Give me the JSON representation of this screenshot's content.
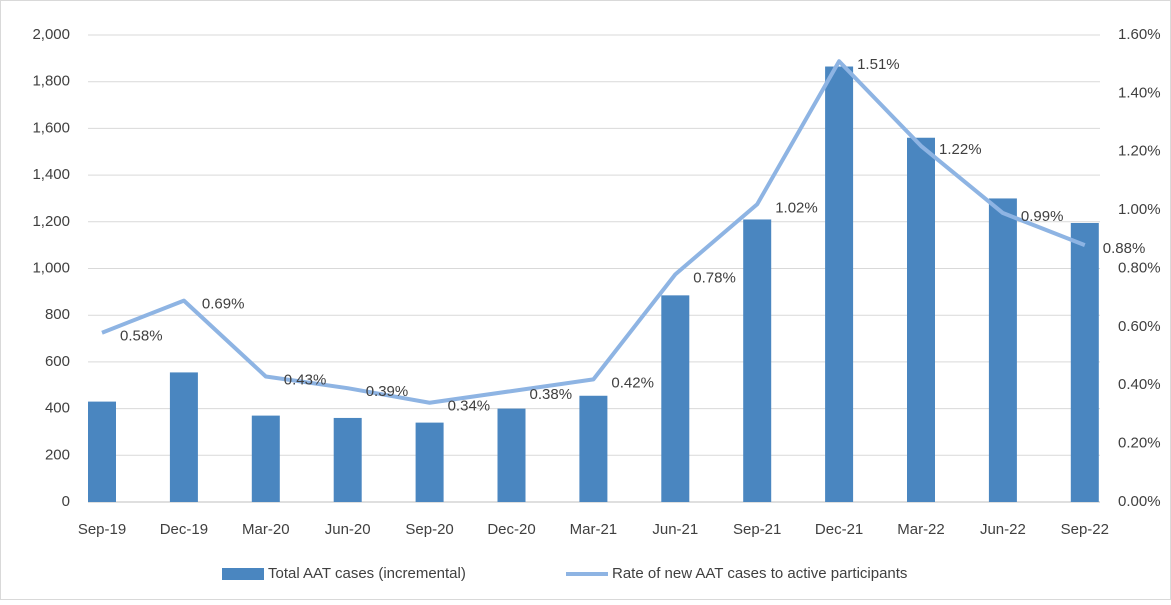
{
  "chart_data": {
    "type": "bar_line",
    "categories": [
      "Sep-19",
      "Dec-19",
      "Mar-20",
      "Jun-20",
      "Sep-20",
      "Dec-20",
      "Mar-21",
      "Jun-21",
      "Sep-21",
      "Dec-21",
      "Mar-22",
      "Jun-22",
      "Sep-22"
    ],
    "series": [
      {
        "name": "Total AAT cases (incremental)",
        "type": "bar",
        "color": "#4a86c0",
        "values": [
          430,
          555,
          370,
          360,
          340,
          400,
          455,
          885,
          1210,
          1865,
          1560,
          1300,
          1195
        ]
      },
      {
        "name": "Rate of new AAT cases to active participants",
        "type": "line",
        "axis": "y2",
        "color": "#8eb4e3",
        "values": [
          0.58,
          0.69,
          0.43,
          0.39,
          0.34,
          0.38,
          0.42,
          0.78,
          1.02,
          1.51,
          1.22,
          0.99,
          0.88
        ],
        "value_labels": [
          "0.58%",
          "0.69%",
          "0.43%",
          "0.39%",
          "0.34%",
          "0.38%",
          "0.42%",
          "0.78%",
          "1.02%",
          "1.51%",
          "1.22%",
          "0.99%",
          "0.88%"
        ]
      }
    ],
    "ylim": [
      0,
      2000
    ],
    "yticks": [
      0,
      200,
      400,
      600,
      800,
      {
        "value": 1000,
        "label": "1,000"
      },
      {
        "value": 1200,
        "label": "1,200"
      },
      {
        "value": 1400,
        "label": "1,400"
      },
      {
        "value": 1600,
        "label": "1,600"
      },
      {
        "value": 1800,
        "label": "1,800"
      },
      {
        "value": 2000,
        "label": "2,000"
      }
    ],
    "y2lim": [
      0,
      1.6
    ],
    "y2ticks": [
      {
        "value": 0,
        "label": "0.00%"
      },
      {
        "value": 0.2,
        "label": "0.20%"
      },
      {
        "value": 0.4,
        "label": "0.40%"
      },
      {
        "value": 0.6,
        "label": "0.60%"
      },
      {
        "value": 0.8,
        "label": "0.80%"
      },
      {
        "value": 1.0,
        "label": "1.00%"
      },
      {
        "value": 1.2,
        "label": "1.20%"
      },
      {
        "value": 1.4,
        "label": "1.40%"
      },
      {
        "value": 1.6,
        "label": "1.60%"
      }
    ],
    "grid": true,
    "legend": "bottom"
  }
}
